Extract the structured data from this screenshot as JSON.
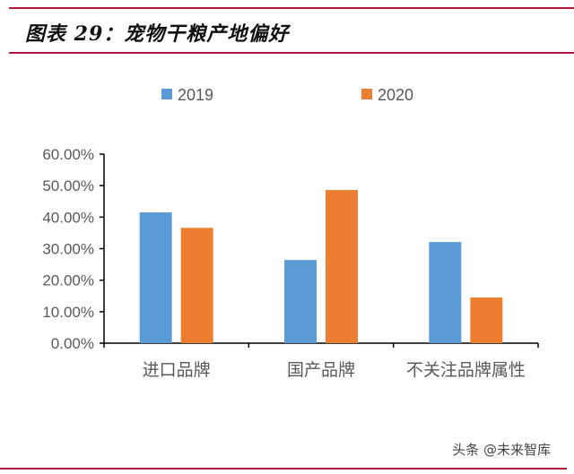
{
  "header": {
    "title": "图表 29：宠物干粮产地偏好"
  },
  "footer": {
    "watermark": "头条 @未来智库"
  },
  "chart_data": {
    "type": "bar",
    "title": "宠物干粮产地偏好",
    "categories": [
      "进口品牌",
      "国产品牌",
      "不关注品牌属性"
    ],
    "series": [
      {
        "name": "2019",
        "color": "#5b9bd5",
        "values": [
          41.5,
          26.4,
          32.1
        ]
      },
      {
        "name": "2020",
        "color": "#ed7d31",
        "values": [
          36.6,
          48.6,
          14.5
        ]
      }
    ],
    "ylim": [
      0,
      60
    ],
    "yticks": [
      0,
      10,
      20,
      30,
      40,
      50,
      60
    ],
    "ytick_labels": [
      "0.00%",
      "10.00%",
      "20.00%",
      "30.00%",
      "40.00%",
      "50.00%",
      "60.00%"
    ],
    "xlabel": "",
    "ylabel": "",
    "grid": false,
    "legend_position": "top"
  }
}
